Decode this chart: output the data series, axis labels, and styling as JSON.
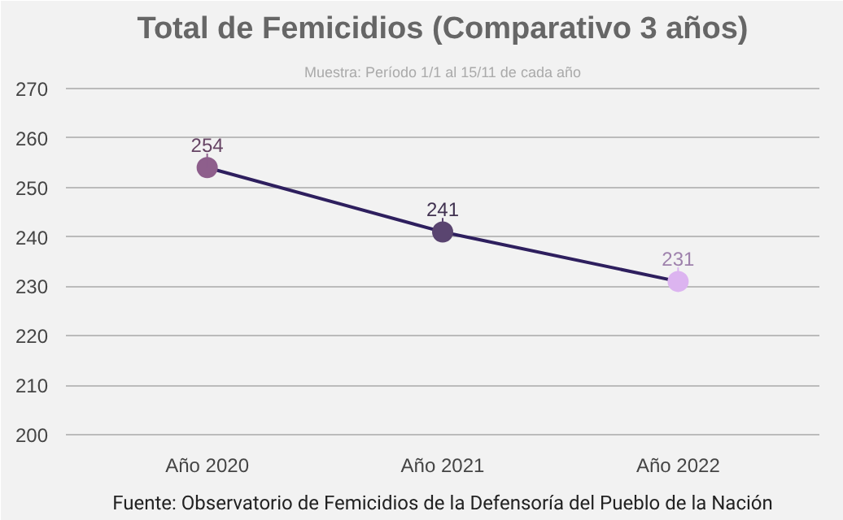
{
  "chart_data": {
    "type": "line",
    "title": "Total de Femicidios (Comparativo 3 años)",
    "subtitle": "Muestra: Período 1/1 al 15/11 de cada año",
    "categories": [
      "Año 2020",
      "Año 2021",
      "Año 2022"
    ],
    "series": [
      {
        "color": "#2e1f5e",
        "colors": [
          "#8e5f8c",
          "#5a4570",
          "#dcb4f0"
        ],
        "values": [
          254,
          241,
          231
        ]
      }
    ],
    "ylim": [
      200,
      270
    ],
    "yticks": [
      200,
      210,
      220,
      230,
      240,
      250,
      260,
      270
    ],
    "grid": "y",
    "marker": "circle",
    "line_style": "solid",
    "data_labels": true,
    "annotations": [
      "Fuente: Observatorio de Femicidios de la Defensoría del Pueblo de la Nación"
    ]
  }
}
